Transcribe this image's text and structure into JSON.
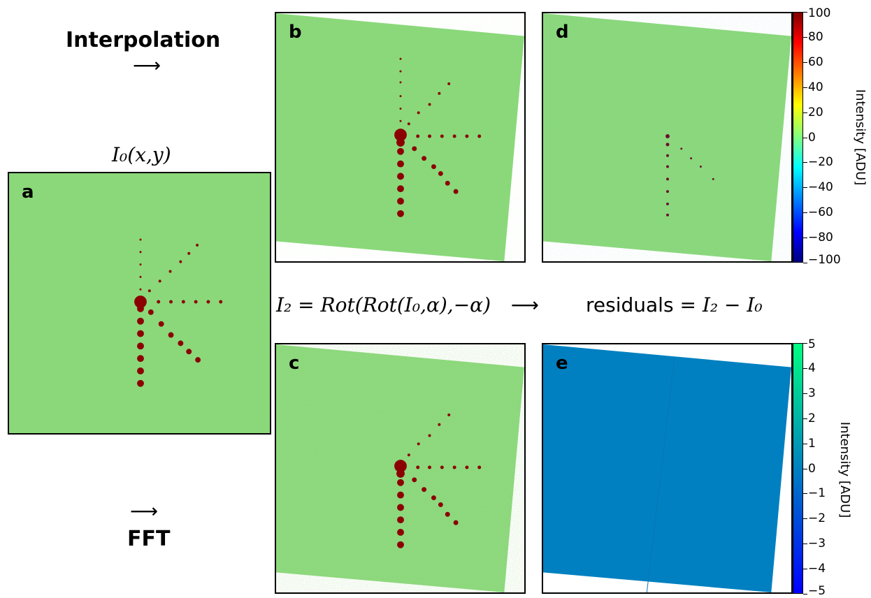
{
  "labels": {
    "interpolation": "Interpolation",
    "fft": "FFT",
    "arrow": "⟶",
    "i0": "I₀(x,y)",
    "equation": "I₂ = Rot(Rot(I₀,α),−α)",
    "residuals_prefix": "residuals",
    "residuals_eq": "= I₂ − I₀"
  },
  "panels": {
    "a": {
      "letter": "a"
    },
    "b": {
      "letter": "b"
    },
    "c": {
      "letter": "c"
    },
    "d": {
      "letter": "d"
    },
    "e": {
      "letter": "e"
    }
  },
  "colorbars": {
    "top": {
      "label": "Intensity [ADU]",
      "ticks": [
        "100",
        "80",
        "60",
        "40",
        "20",
        "0",
        "−20",
        "−40",
        "−60",
        "−80",
        "−100"
      ],
      "colormap": "jet"
    },
    "bottom": {
      "label": "Intensity [ADU]",
      "ticks": [
        "5",
        "4",
        "3",
        "2",
        "1",
        "0",
        "−1",
        "−2",
        "−3",
        "−4",
        "−5"
      ],
      "colormap": "winter"
    }
  },
  "colors": {
    "noise": "#8ad87a",
    "spot": "#8b0000",
    "residual_flat": "#0080c0"
  }
}
